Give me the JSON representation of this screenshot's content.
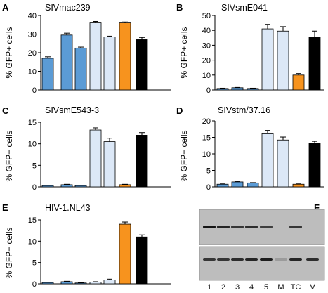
{
  "colors": {
    "blue": "#5b9bd5",
    "light_blue": "#dce8f7",
    "orange": "#f7931e",
    "black": "#000000",
    "gel_background": "#bdbdbd",
    "gel_band": "#141414"
  },
  "chart_data": [
    {
      "type": "bar",
      "panel": "A",
      "title": "SIVmac239",
      "ylabel": "% GFP+ cells",
      "ylim": [
        0,
        40
      ],
      "yticks": [
        "0",
        "10",
        "20",
        "30",
        "40"
      ],
      "values": [
        17,
        29.5,
        22.5,
        36,
        28.5,
        36,
        27
      ],
      "errors": [
        0.8,
        1.0,
        0.5,
        0.8,
        0.4,
        0.5,
        1.2
      ],
      "bar_colors": [
        "blue",
        "blue",
        "blue",
        "light_blue",
        "light_blue",
        "orange",
        "black"
      ]
    },
    {
      "type": "bar",
      "panel": "B",
      "title": "SIVsmE041",
      "ylabel": "% GFP+ cells",
      "ylim": [
        0,
        50
      ],
      "yticks": [
        "0",
        "10",
        "20",
        "30",
        "40",
        "50"
      ],
      "values": [
        1,
        1.5,
        1,
        41,
        39.5,
        10,
        35.5
      ],
      "errors": [
        0.2,
        0.2,
        0.2,
        3.0,
        3.0,
        1.0,
        4.0
      ],
      "bar_colors": [
        "blue",
        "blue",
        "blue",
        "light_blue",
        "light_blue",
        "orange",
        "black"
      ]
    },
    {
      "type": "bar",
      "panel": "C",
      "title": "SIVsmE543-3",
      "ylabel": "% GFP+ cells",
      "ylim": [
        0,
        15
      ],
      "yticks": [
        "0",
        "5",
        "10",
        "15"
      ],
      "values": [
        0.3,
        0.5,
        0.3,
        13.2,
        10.5,
        0.5,
        12
      ],
      "errors": [
        0.1,
        0.1,
        0.1,
        0.5,
        0.8,
        0.1,
        0.6
      ],
      "bar_colors": [
        "blue",
        "blue",
        "blue",
        "light_blue",
        "light_blue",
        "orange",
        "black"
      ]
    },
    {
      "type": "bar",
      "panel": "D",
      "title": "SIVstm/37.16",
      "ylabel": "% GFP+ cells",
      "ylim": [
        0,
        20
      ],
      "yticks": [
        "0",
        "5",
        "10",
        "15",
        "20"
      ],
      "values": [
        0.8,
        1.5,
        1.2,
        16.3,
        14.2,
        0.8,
        13.3
      ],
      "errors": [
        0.1,
        0.2,
        0.1,
        0.8,
        0.9,
        0.1,
        0.5
      ],
      "bar_colors": [
        "blue",
        "blue",
        "blue",
        "light_blue",
        "light_blue",
        "orange",
        "black"
      ]
    },
    {
      "type": "bar",
      "panel": "E",
      "title": "HIV-1.NL43",
      "ylabel": "% GFP+ cells",
      "ylim": [
        0,
        15
      ],
      "yticks": [
        "0",
        "5",
        "10",
        "15"
      ],
      "values": [
        0.3,
        0.5,
        0.2,
        0.4,
        0.9,
        14,
        11
      ],
      "errors": [
        0.1,
        0.1,
        0.1,
        0.1,
        0.2,
        0.5,
        0.5
      ],
      "bar_colors": [
        "blue",
        "blue",
        "blue",
        "light_blue",
        "light_blue",
        "orange",
        "black"
      ]
    }
  ],
  "gel_panel": {
    "panel": "F",
    "lane_labels": [
      "1",
      "2",
      "3",
      "4",
      "5",
      "M",
      "TC",
      "V"
    ],
    "top_band_intensity": [
      1.0,
      0.9,
      0.8,
      0.85,
      0.75,
      0,
      0.8,
      0
    ],
    "bottom_band_intensity": [
      0.8,
      0.8,
      0.85,
      0.9,
      0.95,
      0.2,
      0.9,
      0.85
    ]
  }
}
